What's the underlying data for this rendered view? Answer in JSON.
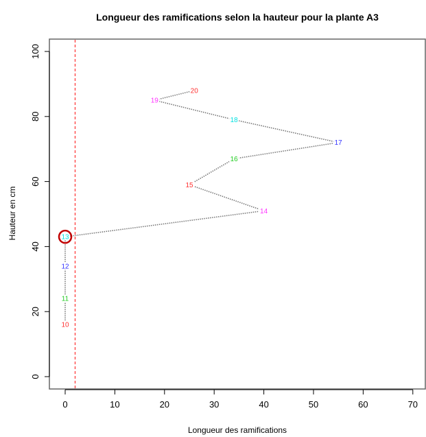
{
  "chart_data": {
    "type": "line",
    "title": "Longueur des ramifications selon la hauteur pour la plante A3",
    "xlabel": "Longueur des ramifications",
    "ylabel": "Hauteur en cm",
    "xlim": [
      0,
      70
    ],
    "ylim": [
      0,
      100
    ],
    "xticks": [
      "0",
      "10",
      "20",
      "30",
      "40",
      "50",
      "60",
      "70"
    ],
    "yticks": [
      "0",
      "20",
      "40",
      "60",
      "80",
      "100"
    ],
    "grid": false,
    "legend": "none",
    "reference_line": {
      "x": 2,
      "color": "#ff3030",
      "style": "dashed"
    },
    "highlight": {
      "label": "13",
      "color": "#c00000"
    },
    "points": [
      {
        "label": "10",
        "x": 0,
        "y": 16,
        "color": "#ff3030"
      },
      {
        "label": "11",
        "x": 0,
        "y": 24,
        "color": "#22cc22"
      },
      {
        "label": "12",
        "x": 0,
        "y": 34,
        "color": "#3333ff"
      },
      {
        "label": "13",
        "x": 0,
        "y": 43,
        "color": "#00e0e0"
      },
      {
        "label": "14",
        "x": 40,
        "y": 51,
        "color": "#ff33ff"
      },
      {
        "label": "15",
        "x": 25,
        "y": 59,
        "color": "#ff3030"
      },
      {
        "label": "16",
        "x": 34,
        "y": 67,
        "color": "#22cc22"
      },
      {
        "label": "17",
        "x": 55,
        "y": 72,
        "color": "#3333ff"
      },
      {
        "label": "18",
        "x": 34,
        "y": 79,
        "color": "#00e0e0"
      },
      {
        "label": "19",
        "x": 18,
        "y": 85,
        "color": "#ff33ff"
      },
      {
        "label": "20",
        "x": 26,
        "y": 88,
        "color": "#ff3030"
      }
    ]
  }
}
